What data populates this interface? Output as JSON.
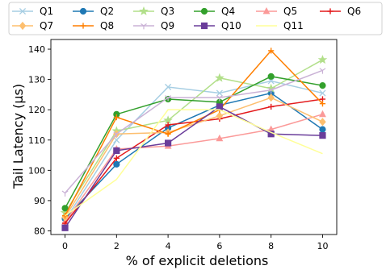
{
  "chart_data": {
    "type": "line",
    "xlabel": "% of explicit deletions",
    "ylabel": "Tail Latency (μs)",
    "x": [
      0,
      2,
      4,
      6,
      8,
      10
    ],
    "x_ticks": [
      "0",
      "2",
      "4",
      "6",
      "8",
      "10"
    ],
    "xlim": [
      -0.55,
      10.55
    ],
    "ylim": [
      78.8,
      143.2
    ],
    "y_ticks": [
      "80",
      "90",
      "100",
      "110",
      "120",
      "130",
      "140"
    ],
    "y_tick_values": [
      80,
      90,
      100,
      110,
      120,
      130,
      140
    ],
    "grid": false,
    "legend_position": "top",
    "series": [
      {
        "name": "Q1",
        "color": "#a6cee3",
        "marker": "x",
        "values": [
          83.5,
          110.0,
          127.5,
          125.5,
          129.5,
          125.5
        ]
      },
      {
        "name": "Q2",
        "color": "#1f78b4",
        "marker": "circle",
        "values": [
          84.0,
          102.0,
          114.0,
          121.5,
          125.5,
          113.5
        ]
      },
      {
        "name": "Q3",
        "color": "#b2df8a",
        "marker": "star",
        "values": [
          86.0,
          113.0,
          116.5,
          130.5,
          127.0,
          136.5
        ]
      },
      {
        "name": "Q4",
        "color": "#33a02c",
        "marker": "circle",
        "values": [
          87.5,
          118.5,
          123.5,
          122.5,
          131.0,
          128.0
        ]
      },
      {
        "name": "Q5",
        "color": "#fb9a99",
        "marker": "triangle",
        "values": [
          83.0,
          107.0,
          108.0,
          110.5,
          113.5,
          118.5
        ]
      },
      {
        "name": "Q6",
        "color": "#e31a1c",
        "marker": "plus",
        "values": [
          82.5,
          104.0,
          115.0,
          117.0,
          121.0,
          123.5
        ]
      },
      {
        "name": "Q7",
        "color": "#fdbf6f",
        "marker": "diamond",
        "values": [
          84.5,
          112.0,
          112.5,
          118.0,
          124.0,
          116.0
        ]
      },
      {
        "name": "Q8",
        "color": "#ff7f00",
        "marker": "plus",
        "values": [
          85.0,
          117.5,
          112.0,
          120.0,
          139.5,
          122.0
        ]
      },
      {
        "name": "Q9",
        "color": "#cab2d6",
        "marker": "tri_down",
        "values": [
          92.5,
          112.0,
          124.0,
          124.0,
          126.5,
          133.0
        ]
      },
      {
        "name": "Q10",
        "color": "#6a3d9a",
        "marker": "square",
        "values": [
          81.0,
          106.5,
          109.0,
          121.0,
          112.0,
          111.5
        ]
      },
      {
        "name": "Q11",
        "color": "#ffff99",
        "marker": "none",
        "values": [
          85.0,
          97.0,
          120.0,
          120.0,
          112.5,
          105.5
        ]
      }
    ]
  }
}
